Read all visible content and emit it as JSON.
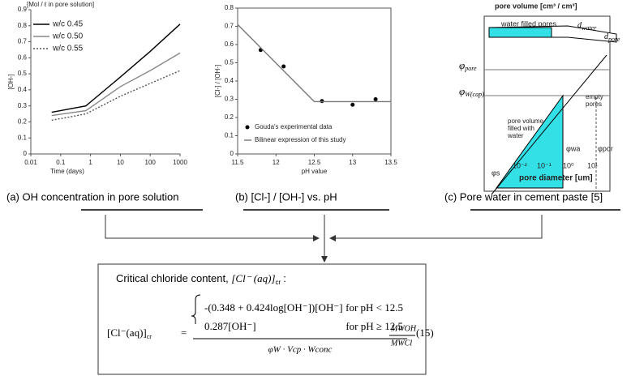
{
  "chart_data": [
    {
      "type": "line",
      "top_label": "[Mol / ℓ in pore solution]",
      "y_label": "[OH-]",
      "x_label": "Time (days)",
      "x": [
        0.05,
        0.7,
        10,
        100,
        1000
      ],
      "log_x": true,
      "xlim": [
        0.01,
        1000
      ],
      "xticks": [
        0.01,
        0.1,
        1,
        10,
        100,
        1000
      ],
      "ylim": [
        0,
        0.9
      ],
      "yticks": [
        0,
        0.1,
        0.2,
        0.3,
        0.4,
        0.5,
        0.6,
        0.7,
        0.8,
        0.9
      ],
      "legend": "top-left",
      "series": [
        {
          "name": "w/c 0.45",
          "color": "#000000",
          "linestyle": "solid",
          "values": [
            0.26,
            0.3,
            0.48,
            0.64,
            0.81
          ]
        },
        {
          "name": "w/c 0.50",
          "color": "#888888",
          "linestyle": "solid",
          "values": [
            0.24,
            0.27,
            0.42,
            0.52,
            0.63
          ]
        },
        {
          "name": "w/c 0.55",
          "color": "#555555",
          "linestyle": "dotted",
          "values": [
            0.21,
            0.25,
            0.36,
            0.44,
            0.52
          ]
        }
      ]
    },
    {
      "type": "scatter",
      "y_label": "[Cl-] / [OH-]",
      "x_label": "pH value",
      "xlim": [
        11.5,
        13.5
      ],
      "xticks": [
        11.5,
        12,
        12.5,
        13,
        13.5
      ],
      "ylim": [
        0,
        0.8
      ],
      "yticks": [
        0,
        0.1,
        0.2,
        0.3,
        0.4,
        0.5,
        0.6,
        0.7,
        0.8
      ],
      "legend": "bottom-right",
      "series": [
        {
          "name": "Gouda's experimental data",
          "color": "#000000",
          "style": "points",
          "x": [
            11.8,
            12.1,
            12.6,
            13.0,
            13.3
          ],
          "values": [
            0.57,
            0.48,
            0.29,
            0.27,
            0.3
          ]
        },
        {
          "name": "Bilinear expression of this study",
          "color": "#777777",
          "style": "line",
          "x": [
            11.5,
            12.5,
            13.5
          ],
          "values": [
            0.71,
            0.287,
            0.287
          ]
        }
      ]
    }
  ],
  "captions": [
    "(a) OH concentration in pore solution",
    "(b) [Cl-] / [OH-]  vs. pH",
    "(c) Pore water in cement paste [5]"
  ],
  "diagram": {
    "title": "pore volume [cm³ / cm³]",
    "water_filled": "water filled pores",
    "d_water": "d",
    "d_water_sub": "water",
    "d_pore": "d",
    "d_pore_sub": "pore",
    "phi_pore": "φ",
    "phi_pore_sub": "pore",
    "phi_wcap": "φ",
    "phi_wcap_sub": "W(cap)",
    "empty": [
      "empty",
      "pores"
    ],
    "filled": [
      "pore volume",
      "filled with",
      "water"
    ],
    "phi_wa": "φwa",
    "phi_por": "φpor",
    "phi_s": "φs",
    "ticks": [
      "10⁻²",
      "10⁻¹",
      "10⁰",
      "10¹"
    ],
    "x_label": "pore diameter [um]"
  },
  "formula": {
    "heading": "Critical chloride content, ",
    "heading_math": "[Cl⁻ (aq)]",
    "heading_sub": "cr",
    "heading_colon": ":",
    "lhs": "[Cl⁻(aq)]",
    "lhs_sub": "cr",
    "equals": "=",
    "case1": "-(0.348 + 0.424log[OH⁻])[OH⁻]",
    "cond1": "for pH < 12.5",
    "case2": "0.287[OH⁻]",
    "cond2": "for pH ≥ 12.5",
    "denominator": "φW · Vcp · Wconc",
    "ratio_num": "MWOH",
    "ratio_den": "MWCl",
    "eq_no": "(15)"
  }
}
